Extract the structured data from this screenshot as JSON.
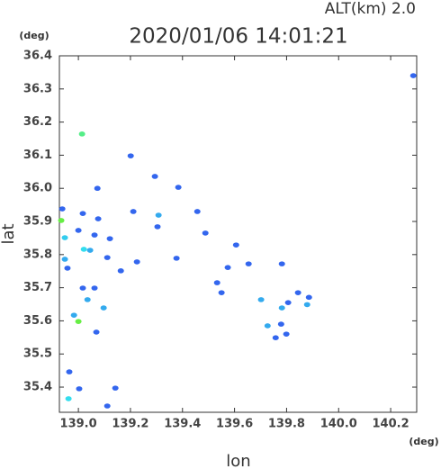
{
  "chart_data": {
    "type": "scatter",
    "title": "2020/01/06 14:01:21",
    "subtitle": "ALT(km)  2.0",
    "y_unit": "(deg)",
    "x_unit": "(deg)",
    "xlabel": "lon",
    "ylabel": "lat",
    "x": [
      140.287,
      139.014,
      139.073,
      138.938,
      138.934,
      139.0,
      138.948,
      139.021,
      139.045,
      138.948,
      138.958,
      139.111,
      139.121,
      139.062,
      139.076,
      139.211,
      139.308,
      139.384,
      139.294,
      139.201,
      139.457,
      139.488,
      139.304,
      139.225,
      139.377,
      139.163,
      139.017,
      139.035,
      139.062,
      139.097,
      138.983,
      139.0,
      139.069,
      138.965,
      139.003,
      139.142,
      139.111,
      138.962,
      139.533,
      139.55,
      139.654,
      139.782,
      139.702,
      139.727,
      139.758,
      139.782,
      139.806,
      139.844,
      139.886,
      139.879,
      139.799,
      139.779,
      139.606,
      139.574,
      139.017
    ],
    "y": [
      36.34,
      36.164,
      36.0,
      35.938,
      35.903,
      35.873,
      35.851,
      35.816,
      35.813,
      35.786,
      35.759,
      35.791,
      35.848,
      35.859,
      35.908,
      35.93,
      35.919,
      36.003,
      36.036,
      36.098,
      35.93,
      35.865,
      35.884,
      35.778,
      35.789,
      35.751,
      35.699,
      35.664,
      35.699,
      35.639,
      35.617,
      35.598,
      35.566,
      35.446,
      35.395,
      35.397,
      35.343,
      35.365,
      35.715,
      35.685,
      35.772,
      35.772,
      35.664,
      35.585,
      35.549,
      35.639,
      35.655,
      35.685,
      35.671,
      35.649,
      35.56,
      35.59,
      35.829,
      35.761,
      35.924
    ],
    "colors": [
      "#3366ee",
      "#55ee88",
      "#3366ee",
      "#3366ee",
      "#66ee44",
      "#3366ee",
      "#33ccee",
      "#33ddee",
      "#33aaee",
      "#33aaee",
      "#3366ee",
      "#3366ee",
      "#3366ee",
      "#3366ee",
      "#3366ee",
      "#3366ee",
      "#33aaee",
      "#3366ee",
      "#3366ee",
      "#3366ee",
      "#3366ee",
      "#3366ee",
      "#3366ee",
      "#3366ee",
      "#3366ee",
      "#3366ee",
      "#3366ee",
      "#33aaee",
      "#3366ee",
      "#33aaee",
      "#33aaee",
      "#66ee44",
      "#3366ee",
      "#3366ee",
      "#3366ee",
      "#3366ee",
      "#3366ee",
      "#33ddee",
      "#3366ee",
      "#3366ee",
      "#3366ee",
      "#3366ee",
      "#33aaee",
      "#33aaee",
      "#3366ee",
      "#33aaee",
      "#3366ee",
      "#3366ee",
      "#3366ee",
      "#33aaee",
      "#3366ee",
      "#3366ee",
      "#3366ee",
      "#3366ee",
      "#3366ee"
    ],
    "xlim": [
      138.927,
      140.3
    ],
    "ylim": [
      35.324,
      36.4
    ],
    "xticks": [
      {
        "value": 139,
        "label": "139.0"
      },
      139.2,
      139.4,
      139.6,
      139.8,
      {
        "value": 140,
        "label": "140.0"
      },
      140.2
    ],
    "yticks": [
      35.4,
      35.5,
      35.6,
      35.7,
      35.8,
      35.9,
      {
        "value": 36,
        "label": "36.0"
      },
      36.1,
      36.2,
      36.3,
      36.4
    ]
  }
}
